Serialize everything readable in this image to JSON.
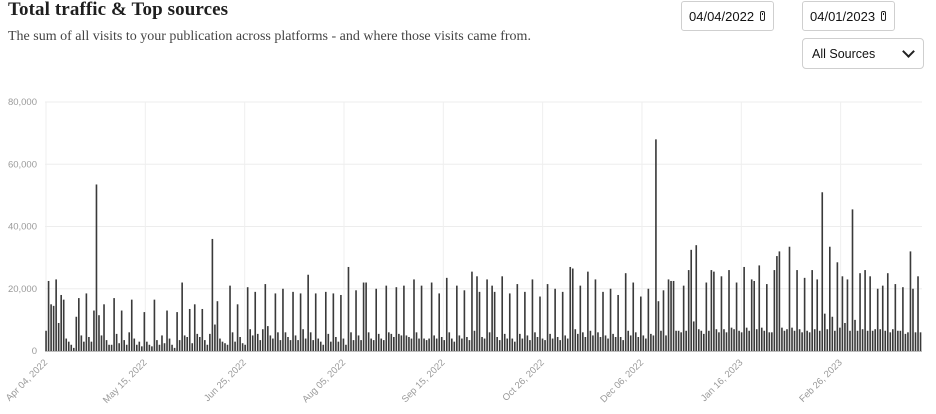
{
  "header": {
    "title": "Total traffic & Top sources",
    "subtitle": "The sum of all visits to your publication across platforms - and where those visits came from."
  },
  "filters": {
    "start_date": "04/04/2022",
    "end_date": "04/01/2023",
    "source_selected": "All Sources"
  },
  "icons": {
    "date": "calendar-icon",
    "select": "chevron-down-icon"
  },
  "chart_data": {
    "type": "bar",
    "ylim": [
      0,
      80000
    ],
    "yticks": [
      0,
      20000,
      40000,
      60000,
      80000
    ],
    "ytick_labels": [
      "0",
      "20,000",
      "40,000",
      "60,000",
      "80,000"
    ],
    "xtick_labels": [
      "Apr 04, 2022",
      "May 15, 2022",
      "Jun 25, 2022",
      "Aug 05, 2022",
      "Sep 15, 2022",
      "Oct 26, 2022",
      "Dec 06, 2022",
      "Jan 16, 2023",
      "Feb 26, 2023"
    ],
    "grid": true,
    "bar_color": "#3a3a3a",
    "values": [
      6500,
      22500,
      15000,
      14500,
      23000,
      9000,
      18000,
      16500,
      4000,
      3000,
      2000,
      1000,
      11000,
      17000,
      5000,
      3000,
      18500,
      4500,
      3000,
      13000,
      53500,
      11500,
      5000,
      15000,
      3500,
      2000,
      2000,
      17000,
      5500,
      2500,
      13000,
      3500,
      2000,
      6000,
      16500,
      4000,
      2000,
      3000,
      1500,
      12500,
      3000,
      2000,
      1500,
      16500,
      3500,
      2000,
      5000,
      2500,
      13000,
      4000,
      2000,
      1000,
      12500,
      3500,
      22000,
      5000,
      4500,
      13500,
      2500,
      15000,
      5500,
      4500,
      13500,
      3500,
      2000,
      5500,
      36000,
      8500,
      16000,
      4000,
      3000,
      2500,
      2000,
      21000,
      6000,
      3000,
      15000,
      4500,
      2500,
      2000,
      20500,
      7000,
      5000,
      19000,
      5500,
      3500,
      7000,
      21500,
      8000,
      5000,
      4000,
      18500,
      6000,
      3500,
      20000,
      6000,
      4500,
      3500,
      19000,
      5000,
      3500,
      18500,
      7000,
      4000,
      24500,
      6000,
      3500,
      18500,
      4000,
      3000,
      2000,
      19000,
      5500,
      3000,
      18500,
      4500,
      3000,
      18000,
      4000,
      2000,
      27000,
      6000,
      3500,
      19500,
      5000,
      3500,
      22000,
      22000,
      6000,
      4000,
      3500,
      20000,
      5500,
      4000,
      3500,
      21000,
      6000,
      5500,
      4500,
      20500,
      5500,
      5000,
      21000,
      5000,
      4500,
      4000,
      23000,
      6000,
      4000,
      21000,
      4000,
      3500,
      4000,
      22000,
      5000,
      4000,
      18500,
      4500,
      3500,
      23500,
      6000,
      4000,
      3000,
      21000,
      5000,
      4000,
      19500,
      4500,
      3500,
      25500,
      6500,
      24000,
      19000,
      4500,
      4000,
      23000,
      6000,
      21000,
      19000,
      4500,
      3500,
      24000,
      5500,
      4000,
      18500,
      4000,
      3000,
      21500,
      5500,
      4000,
      19000,
      5000,
      3500,
      23000,
      6000,
      4500,
      17500,
      4000,
      3500,
      21500,
      5500,
      4000,
      20000,
      4500,
      3500,
      19000,
      5000,
      4000,
      27000,
      26500,
      7000,
      5500,
      21000,
      6000,
      4500,
      25500,
      6500,
      5000,
      23000,
      6000,
      4500,
      19000,
      5000,
      4000,
      20000,
      5500,
      4500,
      18000,
      4500,
      3500,
      25000,
      6500,
      5000,
      22000,
      6000,
      4500,
      17500,
      5000,
      4000,
      20000,
      5500,
      5000,
      68000,
      16000,
      6500,
      19500,
      5000,
      23000,
      22500,
      22500,
      6500,
      6500,
      6000,
      21000,
      6500,
      26000,
      32500,
      9500,
      34000,
      7000,
      6500,
      5500,
      22000,
      6500,
      26000,
      25500,
      7000,
      6000,
      24000,
      7000,
      6000,
      26000,
      7500,
      7000,
      22000,
      6500,
      6000,
      27000,
      7500,
      6500,
      23000,
      22500,
      7000,
      27500,
      7500,
      6500,
      21500,
      6000,
      6000,
      26000,
      30500,
      32000,
      7500,
      6500,
      7000,
      33500,
      7500,
      6500,
      26000,
      7000,
      6000,
      23500,
      6500,
      6000,
      26000,
      7000,
      23000,
      6500,
      51000,
      12000,
      7000,
      33500,
      11000,
      6500,
      28500,
      7500,
      24000,
      9000,
      23000,
      6500,
      45500,
      10000,
      6500,
      25000,
      7000,
      26000,
      6500,
      24000,
      6500,
      7000,
      20000,
      7000,
      21000,
      6500,
      25000,
      6000,
      7000,
      21500,
      6500,
      6500,
      20500,
      5500,
      6000,
      32000,
      20000,
      6000,
      24000,
      6000
    ]
  }
}
